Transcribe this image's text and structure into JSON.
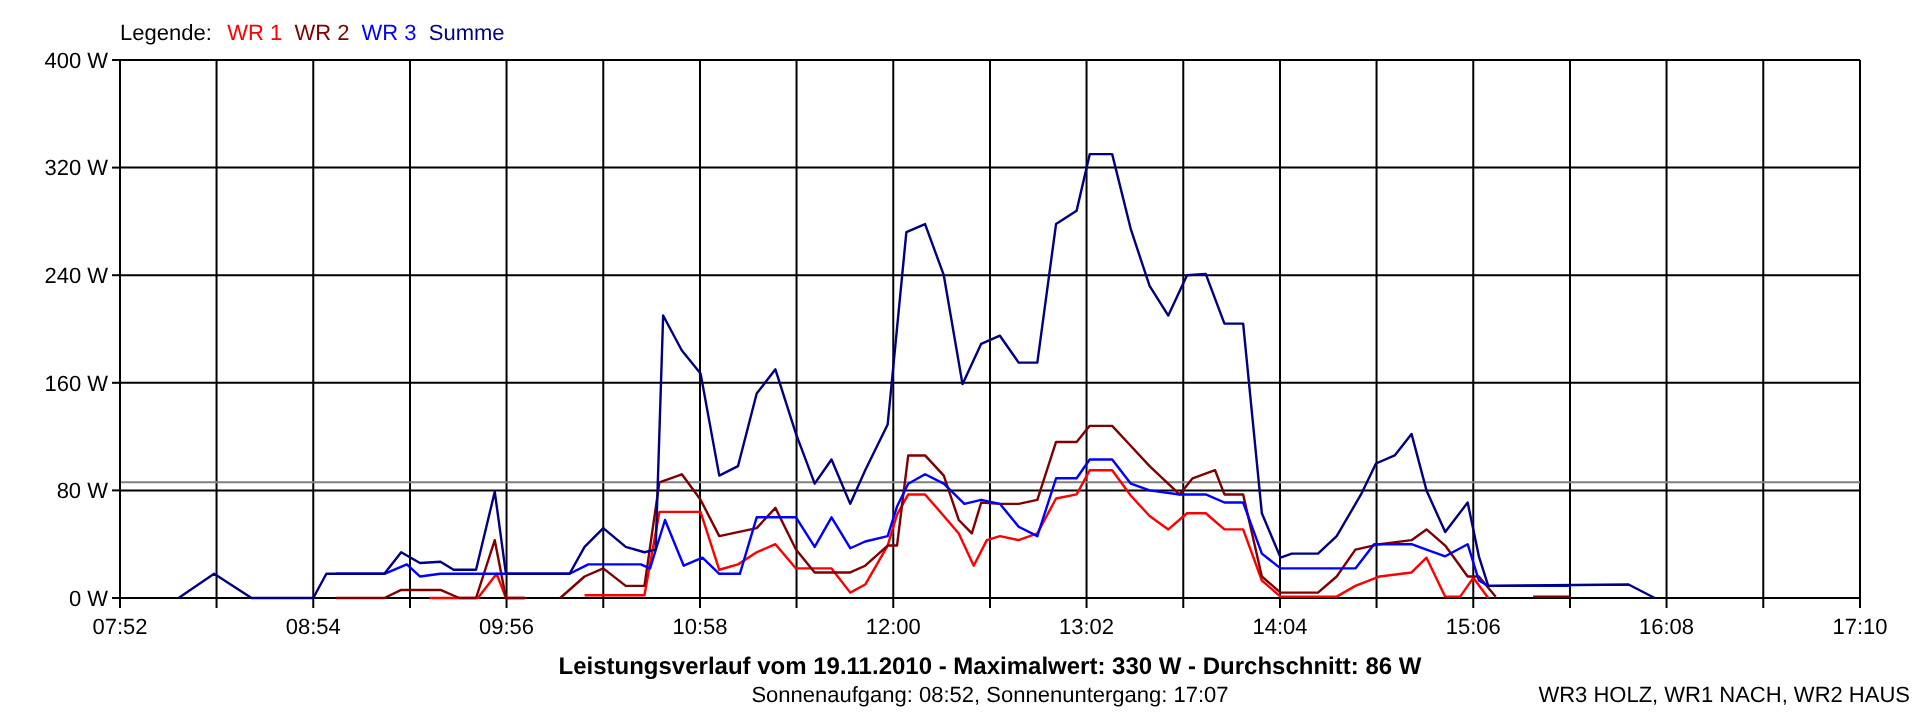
{
  "chart_data": {
    "type": "line",
    "title": "Leistungsverlauf vom 19.11.2010 - Maximalwert: 330 W - Durchschnitt: 86 W",
    "subtitle": "Sonnenaufgang: 08:52, Sonnenuntergang: 17:07",
    "annotations": [
      "WR3 HOLZ, WR1 NACH, WR2 HAUS"
    ],
    "legend_title": "Legende:",
    "legend": "top left",
    "grid": true,
    "line_style": "solid",
    "marker": "none",
    "xlim": [
      7.867,
      17.167
    ],
    "xticks": [
      {
        "value": 7.867,
        "label": "07:52"
      },
      {
        "value": 8.383,
        "label": null
      },
      {
        "value": 8.9,
        "label": "08:54"
      },
      {
        "value": 9.417,
        "label": null
      },
      {
        "value": 9.933,
        "label": "09:56"
      },
      {
        "value": 10.45,
        "label": null
      },
      {
        "value": 10.967,
        "label": "10:58"
      },
      {
        "value": 11.483,
        "label": null
      },
      {
        "value": 12.0,
        "label": "12:00"
      },
      {
        "value": 12.517,
        "label": null
      },
      {
        "value": 13.033,
        "label": "13:02"
      },
      {
        "value": 13.55,
        "label": null
      },
      {
        "value": 14.067,
        "label": "14:04"
      },
      {
        "value": 14.583,
        "label": null
      },
      {
        "value": 15.1,
        "label": "15:06"
      },
      {
        "value": 15.617,
        "label": null
      },
      {
        "value": 16.133,
        "label": "16:08"
      },
      {
        "value": 16.65,
        "label": null
      },
      {
        "value": 17.167,
        "label": "17:10"
      }
    ],
    "ylim": [
      0,
      400
    ],
    "yticks": [
      {
        "value": 0,
        "label": "0 W"
      },
      {
        "value": 80,
        "label": "80 W"
      },
      {
        "value": 160,
        "label": "160 W"
      },
      {
        "value": 240,
        "label": "240 W"
      },
      {
        "value": 320,
        "label": "320 W"
      },
      {
        "value": 400,
        "label": "400 W"
      }
    ],
    "ref_lines": [
      {
        "axis": "y",
        "value": 86,
        "color": "#808080"
      }
    ],
    "series": [
      {
        "name": "WR 1",
        "color": "#ff0000",
        "x": [
          9.52,
          9.78,
          9.88,
          9.93,
          10.03,
          10.1,
          10.35,
          10.67,
          10.75,
          10.97,
          11.07,
          11.17,
          11.27,
          11.37,
          11.48,
          11.67,
          11.77,
          11.85,
          11.97,
          12.02,
          12.08,
          12.17,
          12.27,
          12.35,
          12.43,
          12.5,
          12.57,
          12.67,
          12.77,
          12.87,
          12.98,
          13.05,
          13.17,
          13.27,
          13.37,
          13.47,
          13.57,
          13.67,
          13.77,
          13.87,
          13.97,
          14.07,
          14.37,
          14.47,
          14.6,
          14.77,
          14.85,
          14.95,
          15.03,
          15.1,
          15.18
        ],
        "values": [
          0,
          0,
          18,
          0,
          0,
          null,
          2,
          2,
          64,
          64,
          21,
          25,
          34,
          40,
          22,
          22,
          4,
          10,
          39,
          62,
          77,
          77,
          61,
          48,
          24,
          43,
          46,
          43,
          48,
          74,
          77,
          95,
          95,
          76,
          61,
          51,
          63,
          63,
          51,
          51,
          13,
          1,
          1,
          9,
          16,
          19,
          30,
          1,
          1,
          15,
          0
        ]
      },
      {
        "name": "WR 2",
        "color": "#800000",
        "x": [
          9.02,
          9.28,
          9.37,
          9.58,
          9.68,
          9.77,
          9.87,
          9.93,
          10.03,
          10.1,
          10.22,
          10.35,
          10.45,
          10.57,
          10.67,
          10.75,
          10.87,
          10.97,
          11.07,
          11.27,
          11.37,
          11.48,
          11.58,
          11.77,
          11.85,
          11.97,
          12.02,
          12.08,
          12.17,
          12.27,
          12.35,
          12.42,
          12.47,
          12.57,
          12.67,
          12.77,
          12.87,
          12.98,
          13.05,
          13.17,
          13.27,
          13.37,
          13.53,
          13.6,
          13.72,
          13.77,
          13.87,
          13.97,
          14.07,
          14.27,
          14.37,
          14.47,
          14.6,
          14.77,
          14.85,
          14.95,
          15.07,
          15.13,
          15.22,
          15.3,
          15.42,
          15.62
        ],
        "values": [
          0,
          0,
          6,
          6,
          0,
          0,
          43,
          0,
          0,
          null,
          0,
          16,
          22,
          9,
          9,
          86,
          92,
          73,
          46,
          52,
          67,
          36,
          19,
          19,
          24,
          39,
          39,
          106,
          106,
          91,
          58,
          48,
          71,
          70,
          70,
          73,
          116,
          116,
          128,
          128,
          113,
          98,
          77,
          89,
          95,
          77,
          77,
          16,
          4,
          4,
          16,
          36,
          40,
          43,
          51,
          39,
          16,
          16,
          1,
          null,
          1,
          1
        ]
      },
      {
        "name": "WR 3",
        "color": "#0000ff",
        "x": [
          9.02,
          9.28,
          9.4,
          9.47,
          9.58,
          10.27,
          10.37,
          10.65,
          10.7,
          10.78,
          10.88,
          10.98,
          11.07,
          11.18,
          11.27,
          11.48,
          11.58,
          11.67,
          11.77,
          11.85,
          11.97,
          12.02,
          12.08,
          12.17,
          12.27,
          12.38,
          12.47,
          12.57,
          12.67,
          12.77,
          12.87,
          12.98,
          13.05,
          13.17,
          13.27,
          13.37,
          13.53,
          13.67,
          13.77,
          13.87,
          13.97,
          14.07,
          14.47,
          14.57,
          14.77,
          14.85,
          14.95,
          15.07,
          15.13,
          15.18,
          15.62
        ],
        "values": [
          18,
          18,
          25,
          16,
          18,
          18,
          25,
          25,
          22,
          58,
          24,
          30,
          18,
          18,
          60,
          60,
          38,
          60,
          37,
          42,
          46,
          68,
          85,
          92,
          85,
          70,
          73,
          70,
          53,
          46,
          89,
          89,
          103,
          103,
          85,
          80,
          77,
          77,
          71,
          71,
          33,
          22,
          22,
          40,
          40,
          36,
          31,
          40,
          13,
          9,
          9
        ]
      },
      {
        "name": "Summe",
        "color": "#000080",
        "x": [
          8.18,
          8.37,
          8.57,
          8.9,
          8.97,
          9.28,
          9.37,
          9.47,
          9.58,
          9.65,
          9.77,
          9.87,
          9.93,
          10.27,
          10.35,
          10.45,
          10.57,
          10.67,
          10.73,
          10.77,
          10.87,
          10.97,
          11.07,
          11.17,
          11.27,
          11.37,
          11.48,
          11.58,
          11.67,
          11.77,
          11.85,
          11.97,
          12.07,
          12.17,
          12.27,
          12.37,
          12.47,
          12.57,
          12.67,
          12.77,
          12.87,
          12.98,
          13.05,
          13.17,
          13.27,
          13.37,
          13.47,
          13.57,
          13.67,
          13.77,
          13.87,
          13.97,
          14.07,
          14.13,
          14.27,
          14.37,
          14.5,
          14.58,
          14.68,
          14.77,
          14.85,
          14.95,
          15.07,
          15.13,
          15.18,
          15.93,
          16.07
        ],
        "values": [
          0,
          18,
          0,
          0,
          18,
          18,
          34,
          26,
          27,
          21,
          21,
          79,
          18,
          18,
          38,
          52,
          38,
          34,
          36,
          210,
          184,
          167,
          91,
          98,
          152,
          170,
          122,
          85,
          103,
          70,
          95,
          129,
          272,
          278,
          240,
          159,
          189,
          195,
          175,
          175,
          278,
          288,
          330,
          330,
          274,
          232,
          210,
          240,
          241,
          204,
          204,
          63,
          30,
          33,
          33,
          46,
          77,
          100,
          106,
          122,
          80,
          49,
          71,
          31,
          9,
          10,
          0
        ]
      }
    ]
  }
}
